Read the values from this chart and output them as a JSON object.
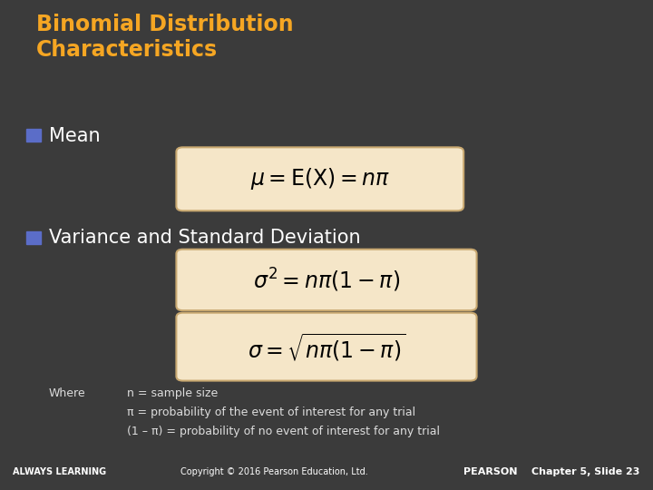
{
  "title": "Binomial Distribution\nCharacteristics",
  "title_color": "#F5A623",
  "bg_color": "#3B3B3B",
  "footer_color": "#F5A623",
  "footer_text_left": "ALWAYS LEARNING",
  "footer_text_center": "Copyright © 2016 Pearson Education, Ltd.",
  "footer_text_right": "PEARSON    Chapter 5, Slide 23",
  "bullet_color": "#5B6DC8",
  "bullet1_text": "Mean",
  "bullet2_text": "Variance and Standard Deviation",
  "formula1": "$\\mu = \\mathrm{E(X)} = n\\pi$",
  "formula2": "$\\sigma^2 = n\\pi(1 - \\pi)$",
  "formula3": "$\\sigma = \\sqrt{n\\pi(1 - \\pi)}$",
  "formula_box_color": "#F5E6C8",
  "formula_box_edge": "#C8A870",
  "formula_text_color": "#000000",
  "where_label": "Where",
  "where_lines": [
    "n = sample size",
    "π = probability of the event of interest for any trial",
    "(1 – π) = probability of no event of interest for any trial"
  ],
  "where_text_color": "#DDDDDD",
  "text_color": "#FFFFFF"
}
